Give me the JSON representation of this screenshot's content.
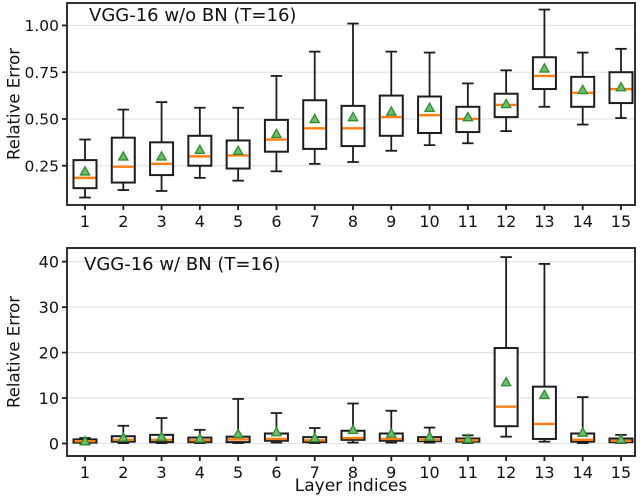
{
  "style": {
    "background": "#ffffff",
    "axis_color": "#1c1c1c",
    "grid_color": "#e2e2e2",
    "median_color": "#ff7f0e",
    "mean_fill": "#6abf69",
    "mean_edge": "#2e8b2e",
    "box_edge": "#1c1c1c",
    "text_color": "#111111"
  },
  "chart_data": [
    {
      "type": "boxplot",
      "title": "VGG-16 w/o BN (T=16)",
      "ylabel": "Relative Error",
      "xlabel": "",
      "categories": [
        "1",
        "2",
        "3",
        "4",
        "5",
        "6",
        "7",
        "8",
        "9",
        "10",
        "11",
        "12",
        "13",
        "14",
        "15"
      ],
      "ytick_values": [
        0.25,
        0.5,
        0.75,
        1.0
      ],
      "ytick_labels": [
        "0.25",
        "0.50",
        "0.75",
        "1.00"
      ],
      "ylim": [
        0.04,
        1.12
      ],
      "grid": true,
      "legend": "none",
      "boxes": [
        {
          "lo": 0.08,
          "q1": 0.13,
          "med": 0.185,
          "q3": 0.28,
          "hi": 0.39,
          "mean": 0.22
        },
        {
          "lo": 0.12,
          "q1": 0.16,
          "med": 0.245,
          "q3": 0.4,
          "hi": 0.55,
          "mean": 0.3
        },
        {
          "lo": 0.115,
          "q1": 0.2,
          "med": 0.26,
          "q3": 0.375,
          "hi": 0.59,
          "mean": 0.3
        },
        {
          "lo": 0.185,
          "q1": 0.25,
          "med": 0.3,
          "q3": 0.41,
          "hi": 0.56,
          "mean": 0.335
        },
        {
          "lo": 0.17,
          "q1": 0.235,
          "med": 0.305,
          "q3": 0.385,
          "hi": 0.56,
          "mean": 0.33
        },
        {
          "lo": 0.22,
          "q1": 0.325,
          "med": 0.39,
          "q3": 0.495,
          "hi": 0.73,
          "mean": 0.42
        },
        {
          "lo": 0.26,
          "q1": 0.34,
          "med": 0.45,
          "q3": 0.6,
          "hi": 0.86,
          "mean": 0.5
        },
        {
          "lo": 0.27,
          "q1": 0.355,
          "med": 0.45,
          "q3": 0.57,
          "hi": 1.01,
          "mean": 0.51
        },
        {
          "lo": 0.33,
          "q1": 0.41,
          "med": 0.51,
          "q3": 0.625,
          "hi": 0.86,
          "mean": 0.54
        },
        {
          "lo": 0.36,
          "q1": 0.425,
          "med": 0.52,
          "q3": 0.62,
          "hi": 0.855,
          "mean": 0.56
        },
        {
          "lo": 0.37,
          "q1": 0.43,
          "med": 0.5,
          "q3": 0.565,
          "hi": 0.69,
          "mean": 0.51
        },
        {
          "lo": 0.435,
          "q1": 0.51,
          "med": 0.575,
          "q3": 0.635,
          "hi": 0.76,
          "mean": 0.58
        },
        {
          "lo": 0.565,
          "q1": 0.66,
          "med": 0.73,
          "q3": 0.83,
          "hi": 1.085,
          "mean": 0.77
        },
        {
          "lo": 0.47,
          "q1": 0.565,
          "med": 0.64,
          "q3": 0.725,
          "hi": 0.855,
          "mean": 0.655
        },
        {
          "lo": 0.505,
          "q1": 0.585,
          "med": 0.66,
          "q3": 0.75,
          "hi": 0.875,
          "mean": 0.67
        }
      ]
    },
    {
      "type": "boxplot",
      "title": "VGG-16 w/ BN (T=16)",
      "ylabel": "Relative Error",
      "xlabel": "Layer indices",
      "categories": [
        "1",
        "2",
        "3",
        "4",
        "5",
        "6",
        "7",
        "8",
        "9",
        "10",
        "11",
        "12",
        "13",
        "14",
        "15"
      ],
      "ytick_values": [
        0,
        10,
        20,
        30,
        40
      ],
      "ytick_labels": [
        "0",
        "10",
        "20",
        "30",
        "40"
      ],
      "ylim": [
        -2.75,
        43.0
      ],
      "grid": true,
      "legend": "none",
      "boxes": [
        {
          "lo": 0.05,
          "q1": 0.2,
          "med": 0.5,
          "q3": 0.9,
          "hi": 1.2,
          "mean": 0.5
        },
        {
          "lo": 0.1,
          "q1": 0.4,
          "med": 0.8,
          "q3": 1.6,
          "hi": 3.9,
          "mean": 1.3
        },
        {
          "lo": 0.1,
          "q1": 0.3,
          "med": 0.8,
          "q3": 1.9,
          "hi": 5.6,
          "mean": 1.5
        },
        {
          "lo": 0.1,
          "q1": 0.3,
          "med": 0.7,
          "q3": 1.3,
          "hi": 3.0,
          "mean": 1.1
        },
        {
          "lo": 0.1,
          "q1": 0.3,
          "med": 0.9,
          "q3": 1.5,
          "hi": 9.8,
          "mean": 2.1
        },
        {
          "lo": 0.2,
          "q1": 0.6,
          "med": 1.0,
          "q3": 2.2,
          "hi": 6.7,
          "mean": 2.5
        },
        {
          "lo": 0.1,
          "q1": 0.3,
          "med": 0.7,
          "q3": 1.4,
          "hi": 3.4,
          "mean": 1.2
        },
        {
          "lo": 0.2,
          "q1": 0.8,
          "med": 1.2,
          "q3": 2.8,
          "hi": 8.8,
          "mean": 3.0
        },
        {
          "lo": 0.2,
          "q1": 0.6,
          "med": 1.0,
          "q3": 2.2,
          "hi": 7.2,
          "mean": 2.2
        },
        {
          "lo": 0.2,
          "q1": 0.5,
          "med": 0.8,
          "q3": 1.4,
          "hi": 3.5,
          "mean": 1.5
        },
        {
          "lo": 0.1,
          "q1": 0.4,
          "med": 0.7,
          "q3": 1.1,
          "hi": 1.8,
          "mean": 1.0
        },
        {
          "lo": 1.5,
          "q1": 3.8,
          "med": 8.1,
          "q3": 21.0,
          "hi": 41.0,
          "mean": 13.5
        },
        {
          "lo": 0.4,
          "q1": 1.0,
          "med": 4.3,
          "q3": 12.5,
          "hi": 39.5,
          "mean": 10.7
        },
        {
          "lo": 0.1,
          "q1": 0.4,
          "med": 0.8,
          "q3": 2.2,
          "hi": 10.2,
          "mean": 2.4
        },
        {
          "lo": 0.1,
          "q1": 0.3,
          "med": 0.6,
          "q3": 1.1,
          "hi": 1.9,
          "mean": 0.9
        }
      ]
    }
  ]
}
